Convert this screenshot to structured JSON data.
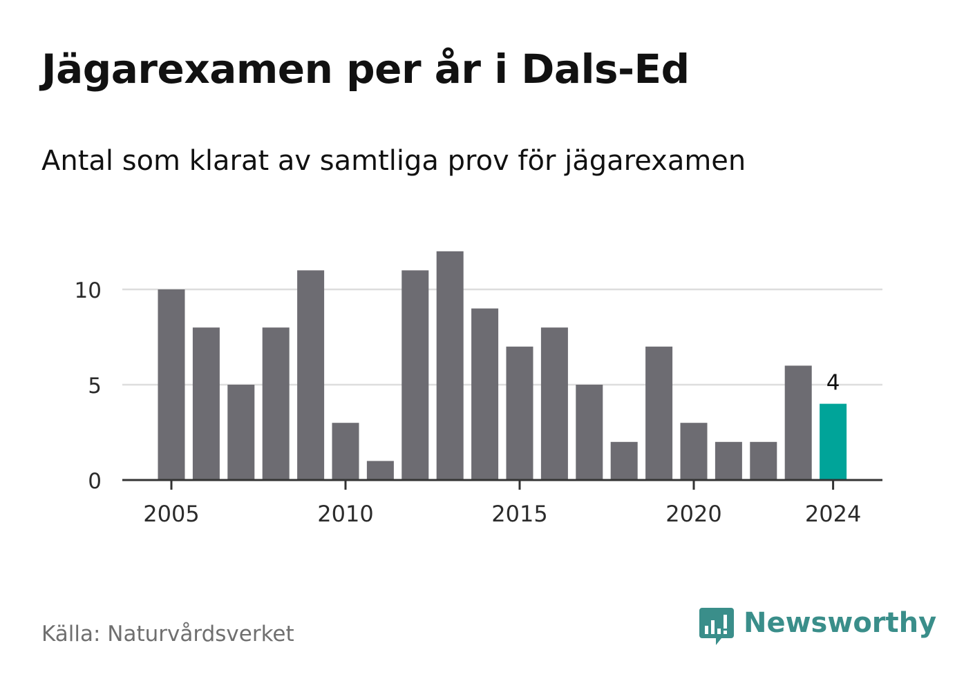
{
  "chart_data": {
    "type": "bar",
    "title": "Jägarexamen per år i Dals-Ed",
    "subtitle": "Antal som klarat av samtliga prov för jägarexamen",
    "categories": [
      2005,
      2006,
      2007,
      2008,
      2009,
      2010,
      2011,
      2012,
      2013,
      2014,
      2015,
      2016,
      2017,
      2018,
      2019,
      2020,
      2021,
      2022,
      2023,
      2024
    ],
    "values": [
      10,
      8,
      5,
      8,
      11,
      3,
      1,
      11,
      12,
      9,
      7,
      8,
      5,
      2,
      7,
      3,
      2,
      2,
      6,
      4
    ],
    "x_tick_labels": [
      "2005",
      "2010",
      "2015",
      "2020",
      "2024"
    ],
    "y_ticks": [
      0,
      5,
      10
    ],
    "ylim": [
      0,
      12
    ],
    "grid": true,
    "highlight": {
      "category": 2024,
      "label": "4",
      "color": "#00a499"
    },
    "bar_color": "#6d6c72",
    "xlabel": "",
    "ylabel": ""
  },
  "footer": {
    "source": "Källa: Naturvårdsverket",
    "brand": "Newsworthy",
    "brand_color": "#3a8e8a"
  }
}
